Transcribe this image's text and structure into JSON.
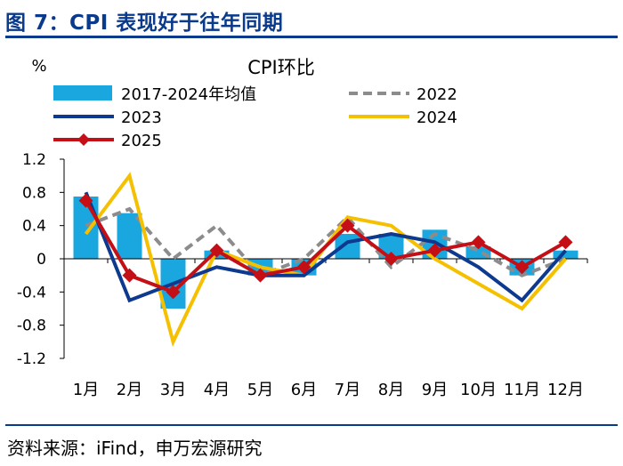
{
  "figure": {
    "title": "图 7：CPI 表现好于往年同期",
    "source": "资料来源：iFind，申万宏源研究"
  },
  "chart_data": {
    "type": "bar",
    "title": "CPI环比",
    "ylabel": "%",
    "xlabel": "",
    "ylim": [
      -1.2,
      1.2
    ],
    "yticks": [
      1.2,
      0.8,
      0.4,
      0,
      -0.4,
      -0.8,
      -1.2
    ],
    "ytick_labels": [
      "1.2",
      "0.8",
      "0.4",
      "0",
      "-0.4",
      "-0.8",
      "-1.2"
    ],
    "categories": [
      "1月",
      "2月",
      "3月",
      "4月",
      "5月",
      "6月",
      "7月",
      "8月",
      "9月",
      "10月",
      "11月",
      "12月"
    ],
    "legend_position": "top",
    "grid": false,
    "series": [
      {
        "name": "2017-2024年均值",
        "kind": "bar",
        "color": "#1aa7e0",
        "values": [
          0.75,
          0.55,
          -0.6,
          0.1,
          -0.2,
          -0.2,
          0.3,
          0.3,
          0.35,
          0.15,
          -0.2,
          0.1
        ]
      },
      {
        "name": "2022",
        "kind": "dashed-line",
        "color": "#8c8c8c",
        "values": [
          0.4,
          0.6,
          0.0,
          0.4,
          -0.2,
          0.0,
          0.5,
          -0.1,
          0.3,
          0.1,
          -0.2,
          0.0
        ]
      },
      {
        "name": "2023",
        "kind": "line",
        "color": "#0d3a8e",
        "values": [
          0.8,
          -0.5,
          -0.3,
          -0.1,
          -0.2,
          -0.2,
          0.2,
          0.3,
          0.2,
          -0.1,
          -0.5,
          0.1
        ]
      },
      {
        "name": "2024",
        "kind": "line",
        "color": "#f5c000",
        "values": [
          0.3,
          1.0,
          -1.0,
          0.1,
          -0.1,
          -0.2,
          0.5,
          0.4,
          0.0,
          -0.3,
          -0.6,
          0.0
        ]
      },
      {
        "name": "2025",
        "kind": "marker-line",
        "color": "#c40f16",
        "values": [
          0.7,
          -0.2,
          -0.4,
          0.1,
          -0.2,
          -0.1,
          0.4,
          0.0,
          0.1,
          0.2,
          -0.1,
          0.2
        ]
      }
    ]
  }
}
